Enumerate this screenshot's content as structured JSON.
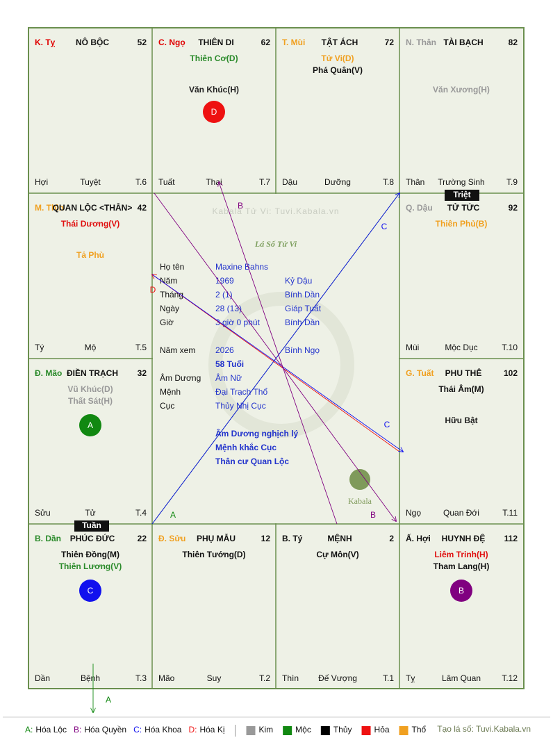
{
  "watermark": "Kabala Tử Vi: Tuvi.Kabala.vn",
  "center_title": "Lá Số Tử Vi",
  "logo": "Kabala",
  "palaces": [
    {
      "branch": "K. Tỵ",
      "branch_color": "#e00000",
      "name": "NÔ BỘC",
      "number": 52,
      "stars": [],
      "minor": [],
      "bottom": [
        "Hợi",
        "Tuyệt",
        "T.6"
      ]
    },
    {
      "branch": "C. Ngọ",
      "branch_color": "#e00000",
      "name": "THIÊN DI",
      "number": 62,
      "stars": [
        {
          "text": "Thiên Cơ(D)",
          "color": "#2a8a2a"
        }
      ],
      "minor": [
        {
          "text": "Văn Khúc(H)",
          "color": "#222"
        }
      ],
      "circle": {
        "label": "D",
        "color": "#ee1111"
      },
      "bottom": [
        "Tuất",
        "Thai",
        "T.7"
      ]
    },
    {
      "branch": "T. Mùi",
      "branch_color": "#f0a020",
      "name": "TẬT ÁCH",
      "number": 72,
      "stars": [
        {
          "text": "Tử Vi(D)",
          "color": "#f0a020"
        },
        {
          "text": "Phá Quân(V)",
          "color": "#111"
        }
      ],
      "minor": [],
      "bottom": [
        "Dậu",
        "Dưỡng",
        "T.8"
      ]
    },
    {
      "branch": "N. Thân",
      "branch_color": "#999",
      "name": "TÀI BẠCH",
      "number": 82,
      "stars": [],
      "minor": [
        {
          "text": "Văn Xương(H)",
          "color": "#999"
        }
      ],
      "bottom": [
        "Thân",
        "Trường Sinh",
        "T.9"
      ]
    },
    {
      "branch": "M. Thìn",
      "branch_color": "#f0a020",
      "name": "QUAN LỘC <THÂN>",
      "number": 42,
      "stars": [
        {
          "text": "Thái Dương(V)",
          "color": "#e01010"
        }
      ],
      "minor": [
        {
          "text": "Tả Phù",
          "color": "#f0a020"
        }
      ],
      "bottom": [
        "Tý",
        "Mộ",
        "T.5"
      ]
    },
    {
      "branch": "Q. Dậu",
      "branch_color": "#999",
      "name": "TỬ TỨC",
      "number": 92,
      "stars": [
        {
          "text": "Thiên Phủ(B)",
          "color": "#f0a020"
        }
      ],
      "minor": [],
      "bottom": [
        "Mùi",
        "Mộc Dục",
        "T.10"
      ]
    },
    {
      "branch": "Đ. Mão",
      "branch_color": "#2a8a2a",
      "name": "ĐIỀN TRẠCH",
      "number": 32,
      "stars": [
        {
          "text": "Vũ Khúc(D)",
          "color": "#999"
        },
        {
          "text": "Thất Sát(H)",
          "color": "#999"
        }
      ],
      "minor": [],
      "circle": {
        "label": "A",
        "color": "#118811"
      },
      "bottom": [
        "Sửu",
        "Tử",
        "T.4"
      ]
    },
    {
      "branch": "G. Tuất",
      "branch_color": "#f0a020",
      "name": "PHU THÊ",
      "number": 102,
      "stars": [
        {
          "text": "Thái Âm(M)",
          "color": "#111"
        }
      ],
      "minor": [
        {
          "text": "Hữu Bật",
          "color": "#222"
        }
      ],
      "bottom": [
        "Ngọ",
        "Quan Đới",
        "T.11"
      ]
    },
    {
      "branch": "B. Dần",
      "branch_color": "#2a8a2a",
      "name": "PHÚC ĐỨC",
      "number": 22,
      "stars": [
        {
          "text": "Thiên Đồng(M)",
          "color": "#111"
        },
        {
          "text": "Thiên Lương(V)",
          "color": "#2a8a2a"
        }
      ],
      "minor": [],
      "circle": {
        "label": "C",
        "color": "#1111ee"
      },
      "bottom": [
        "Dần",
        "Bệnh",
        "T.3"
      ]
    },
    {
      "branch": "Đ. Sửu",
      "branch_color": "#f0a020",
      "name": "PHỤ MẪU",
      "number": 12,
      "stars": [
        {
          "text": "Thiên Tướng(D)",
          "color": "#111"
        }
      ],
      "minor": [],
      "bottom": [
        "Mão",
        "Suy",
        "T.2"
      ]
    },
    {
      "branch": "B. Tý",
      "branch_color": "#111",
      "name": "MỆNH",
      "number": 2,
      "stars": [
        {
          "text": "Cự Môn(V)",
          "color": "#111"
        }
      ],
      "minor": [],
      "bottom": [
        "Thìn",
        "Đế Vượng",
        "T.1"
      ]
    },
    {
      "branch": "Ấ. Hợi",
      "branch_color": "#111",
      "name": "HUYNH ĐỆ",
      "number": 112,
      "stars": [
        {
          "text": "Liêm Trinh(H)",
          "color": "#e01010"
        },
        {
          "text": "Tham Lang(H)",
          "color": "#111"
        }
      ],
      "minor": [],
      "circle": {
        "label": "B",
        "color": "#800080"
      },
      "bottom": [
        "Tỵ",
        "Lâm Quan",
        "T.12"
      ]
    }
  ],
  "tags": [
    "Triệt",
    "Tuần"
  ],
  "info": [
    [
      [
        "Họ tên",
        "Maxine Bahns"
      ],
      [
        "Năm",
        "1969",
        "Kỷ Dậu"
      ],
      [
        "Tháng",
        "2  (1)",
        "Bính Dần"
      ],
      [
        "Ngày",
        "28  (13)",
        "Giáp Tuất"
      ],
      [
        "Giờ",
        "3 giờ 0 phút",
        "Bính Dần"
      ]
    ],
    [
      [
        "Năm xem",
        "2026",
        "Bính Ngọ"
      ],
      [
        null,
        "58 Tuổi"
      ],
      [
        "Âm Dương",
        "Âm Nữ"
      ],
      [
        "Mệnh",
        "Đại Trạch Thổ"
      ],
      [
        "Cục",
        "Thủy Nhị Cục"
      ]
    ]
  ],
  "notes": [
    "Âm Dương nghịch lý",
    "Mệnh khắc Cục",
    "Thân cư Quan Lộc"
  ],
  "arrows": [
    {
      "label": "A",
      "color": "#118811"
    },
    {
      "label": "C",
      "color": "#1111ee"
    },
    {
      "label": "D",
      "color": "#ee1111"
    },
    {
      "label": "C",
      "color": "#1111ee"
    },
    {
      "label": "B",
      "color": "#800080"
    },
    {
      "label": "B",
      "color": "#800080"
    },
    {
      "label": "A",
      "color": "#118811"
    }
  ],
  "legend": {
    "transforms": [
      {
        "key": "A:",
        "text": "Hóa Lộc",
        "color": "#118811"
      },
      {
        "key": "B:",
        "text": "Hóa Quyền",
        "color": "#800080"
      },
      {
        "key": "C:",
        "text": "Hóa Khoa",
        "color": "#1111ee"
      },
      {
        "key": "D:",
        "text": "Hóa Kị",
        "color": "#ee1111"
      }
    ],
    "elements": [
      {
        "text": "Kim",
        "color": "#999999"
      },
      {
        "text": "Mộc",
        "color": "#118811"
      },
      {
        "text": "Thủy",
        "color": "#000000"
      },
      {
        "text": "Hỏa",
        "color": "#ee1111"
      },
      {
        "text": "Thổ",
        "color": "#f0a020"
      }
    ],
    "credit": "Tạo lá số: Tuvi.Kabala.vn"
  }
}
